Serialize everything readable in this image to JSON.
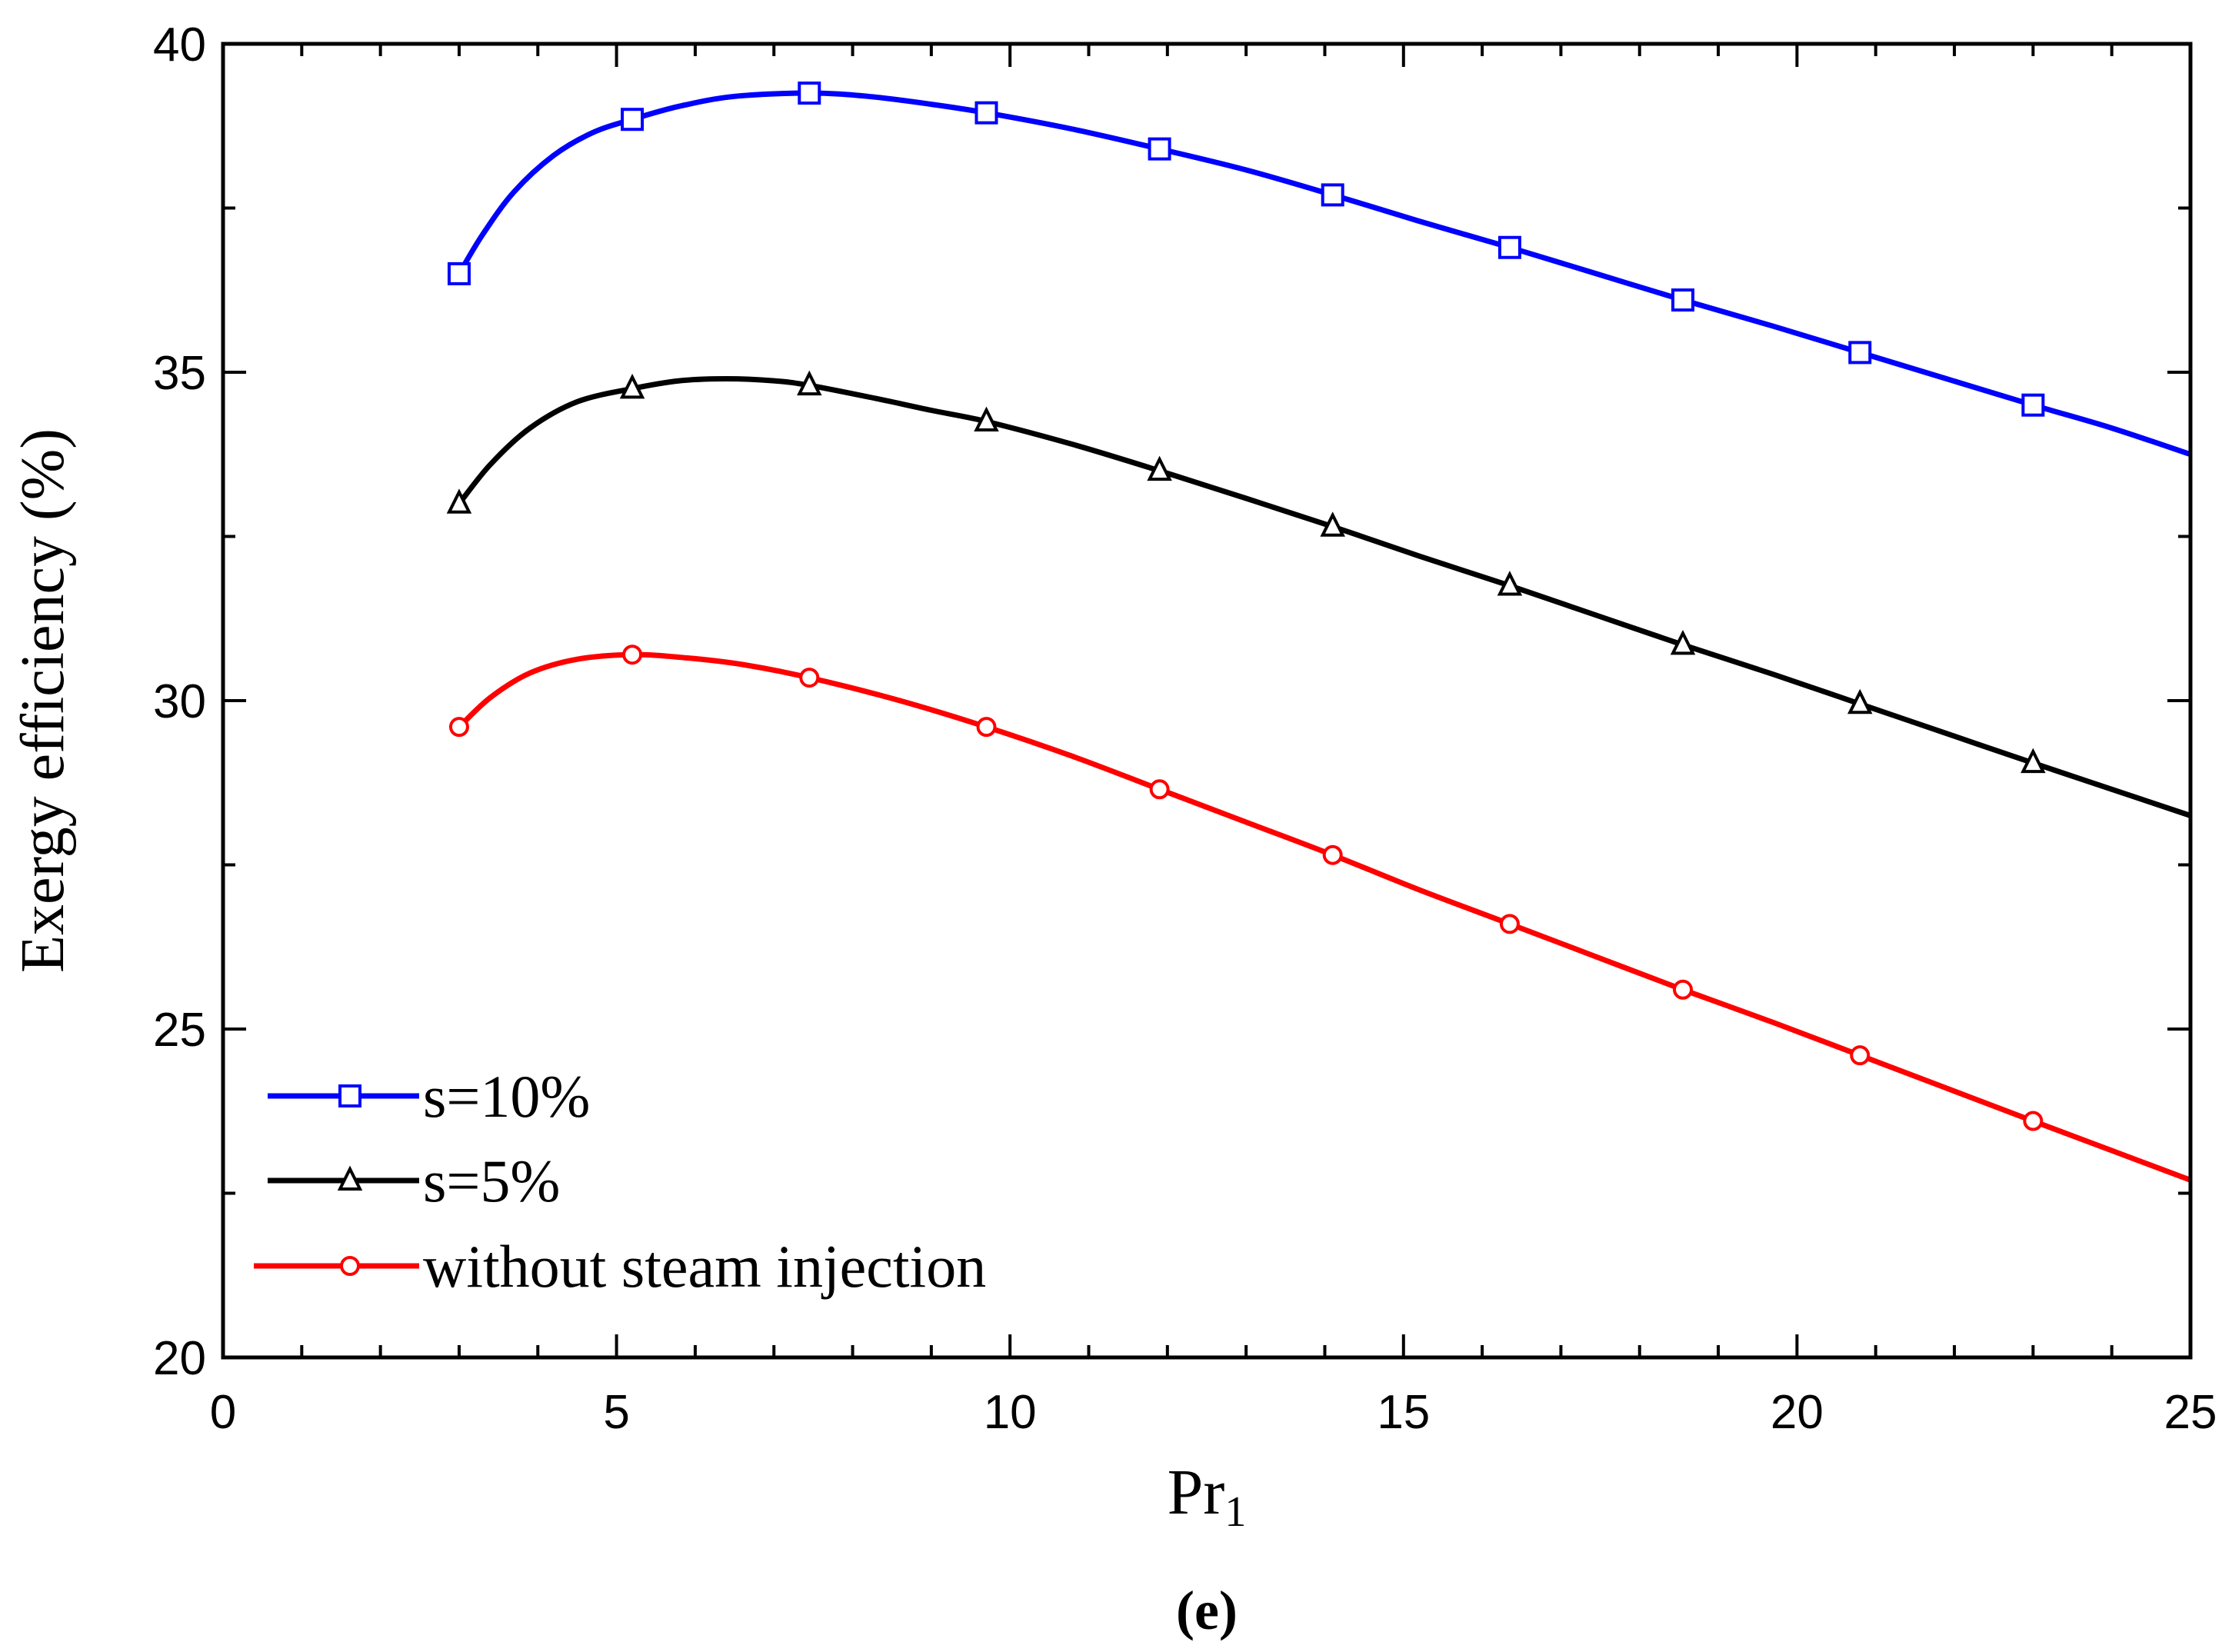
{
  "chart_data": {
    "type": "line",
    "title": "",
    "xlabel": "Pr",
    "xlabel_subscript": "1",
    "ylabel": "Exergy efficiency (%)",
    "caption": "(e)",
    "xlim": [
      0,
      25
    ],
    "ylim": [
      20,
      40
    ],
    "xticks": [
      "0",
      "5",
      "10",
      "15",
      "20",
      "25"
    ],
    "yticks": [
      "20",
      "25",
      "30",
      "35",
      "40"
    ],
    "x_minor_step": 1,
    "y_minor_step": 2.5,
    "grid": false,
    "legend_position": "bottom-left",
    "series": [
      {
        "name": "s=10%",
        "color": "#0000ff",
        "marker": "square",
        "x": [
          3.0,
          5.2,
          7.45,
          9.7,
          11.9,
          14.1,
          16.35,
          18.55,
          20.8,
          23.0
        ],
        "y": [
          36.5,
          38.85,
          39.25,
          38.95,
          38.4,
          37.7,
          36.9,
          36.1,
          35.3,
          34.5
        ],
        "curve_x": [
          3.0,
          3.3,
          3.7,
          4.2,
          4.7,
          5.2,
          5.8,
          6.5,
          7.45,
          8.2,
          9.0,
          9.7,
          10.8,
          11.9,
          13.0,
          14.1,
          15.2,
          16.35,
          17.45,
          18.55,
          19.7,
          20.8,
          21.9,
          23.0,
          24.0,
          25.0
        ],
        "curve_y": [
          36.5,
          37.1,
          37.75,
          38.3,
          38.65,
          38.85,
          39.05,
          39.2,
          39.25,
          39.2,
          39.08,
          38.95,
          38.7,
          38.4,
          38.08,
          37.7,
          37.3,
          36.9,
          36.5,
          36.1,
          35.7,
          35.3,
          34.9,
          34.5,
          34.15,
          33.75
        ]
      },
      {
        "name": "s=5%",
        "color": "#000000",
        "marker": "triangle",
        "x": [
          3.0,
          5.2,
          7.45,
          9.7,
          11.9,
          14.1,
          16.35,
          18.55,
          20.8,
          23.0
        ],
        "y": [
          33.0,
          34.75,
          34.8,
          34.25,
          33.5,
          32.65,
          31.75,
          30.85,
          29.95,
          29.05
        ],
        "curve_x": [
          3.0,
          3.4,
          3.9,
          4.5,
          5.2,
          5.8,
          6.4,
          7.0,
          7.45,
          8.3,
          9.0,
          9.7,
          10.8,
          11.9,
          13.0,
          14.1,
          15.2,
          16.35,
          17.45,
          18.55,
          19.7,
          20.8,
          21.9,
          23.0,
          24.0,
          25.0
        ],
        "curve_y": [
          33.0,
          33.6,
          34.15,
          34.55,
          34.75,
          34.87,
          34.9,
          34.87,
          34.8,
          34.6,
          34.42,
          34.25,
          33.9,
          33.5,
          33.08,
          32.65,
          32.2,
          31.75,
          31.3,
          30.85,
          30.4,
          29.95,
          29.5,
          29.05,
          28.65,
          28.25
        ]
      },
      {
        "name": "without steam injection",
        "color": "#ff0000",
        "marker": "circle",
        "x": [
          3.0,
          5.2,
          7.45,
          9.7,
          11.9,
          14.1,
          16.35,
          18.55,
          20.8,
          23.0
        ],
        "y": [
          29.6,
          30.7,
          30.35,
          29.6,
          28.65,
          27.65,
          26.6,
          25.6,
          24.6,
          23.6
        ],
        "curve_x": [
          3.0,
          3.4,
          3.9,
          4.5,
          5.2,
          5.9,
          6.6,
          7.45,
          8.6,
          9.7,
          10.8,
          11.9,
          13.0,
          14.1,
          15.2,
          16.35,
          17.45,
          18.55,
          19.7,
          20.8,
          21.9,
          23.0,
          24.0,
          25.0
        ],
        "curve_y": [
          29.6,
          30.05,
          30.42,
          30.63,
          30.7,
          30.65,
          30.55,
          30.35,
          30.0,
          29.6,
          29.15,
          28.65,
          28.15,
          27.65,
          27.12,
          26.6,
          26.1,
          25.6,
          25.1,
          24.6,
          24.1,
          23.6,
          23.15,
          22.7
        ]
      }
    ]
  }
}
